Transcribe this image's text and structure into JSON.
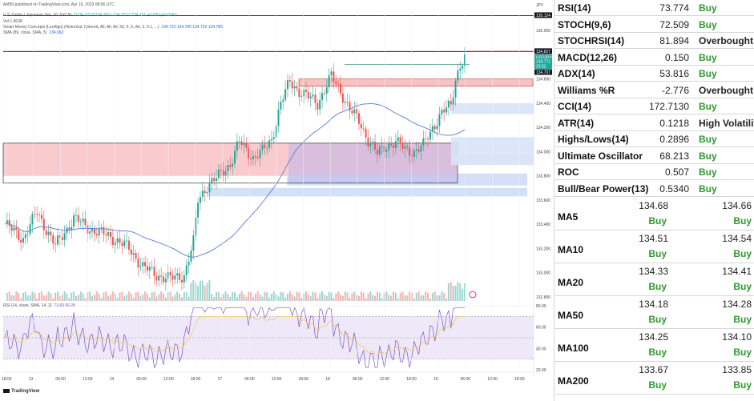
{
  "chart": {
    "publish_line": "Arif99 published on TradingView.com, Apr 19, 2023 08:06 UTC",
    "symbol_line": "U.S. Dollar / Japanese Yen, 30, FXCM",
    "ohlc": "O134.722 H134.780 L134.722 C134.771 +0.039 (+0.03%)",
    "volume_line": "Vol 1.963K",
    "smc_line": "Smart Money Concepts [LuxAlgo] (Historical, Colored, All, All, All, 50, 5, 5, Atr, 3, 0.1, ...)",
    "smc_values": "134.722 134.780 134.722 134.780",
    "sma_line": "SMA (89, close, SMA, 5)",
    "sma_value": "134.062",
    "rsi_line": "RSI (14, close, SMA, 14, 2)",
    "rsi_values": "73.69  66.28",
    "currency": "JPY",
    "price_badges": {
      "top_line": "135.124",
      "current": "134.827",
      "label": "USDJPY",
      "last": "134.771",
      "countdown": "23:52",
      "below": "134.707"
    },
    "footer": "TradingView"
  },
  "chart_data": {
    "type": "candlestick",
    "title": "U.S. Dollar / Japanese Yen, 30, FXCM",
    "y_ticks": [
      "135.000",
      "134.800",
      "134.600",
      "134.400",
      "134.200",
      "134.000",
      "133.800",
      "133.600",
      "133.400",
      "133.200",
      "133.000",
      "132.800"
    ],
    "ylim": [
      132.76,
      135.16
    ],
    "x_ticks": [
      "18:00",
      "13",
      "06:00",
      "12:00",
      "14",
      "06:00",
      "12:00",
      "18:00",
      "17",
      "06:00",
      "12:00",
      "18:00",
      "18",
      "06:00",
      "12:00",
      "18:00",
      "19",
      "06:00",
      "12:00",
      "18:00"
    ],
    "horizontal_lines": [
      135.124,
      134.827
    ],
    "last_price": 134.771,
    "sma_89_last": 134.062,
    "rsi": {
      "last": 73.69,
      "signal": 66.28,
      "ylim": [
        20,
        80
      ],
      "ticks": [
        "80.00",
        "60.00",
        "40.00",
        "20.00"
      ],
      "bands": [
        70,
        30
      ]
    }
  },
  "indicators": [
    {
      "name": "RSI(14)",
      "value": "73.774",
      "action": "Buy"
    },
    {
      "name": "STOCH(9,6)",
      "value": "72.509",
      "action": "Buy"
    },
    {
      "name": "STOCHRSI(14)",
      "value": "81.894",
      "action": "Overbought"
    },
    {
      "name": "MACD(12,26)",
      "value": "0.150",
      "action": "Buy"
    },
    {
      "name": "ADX(14)",
      "value": "53.816",
      "action": "Buy"
    },
    {
      "name": "Williams %R",
      "value": "-2.776",
      "action": "Overbought"
    },
    {
      "name": "CCI(14)",
      "value": "172.7130",
      "action": "Buy"
    },
    {
      "name": "ATR(14)",
      "value": "0.1218",
      "action": "High Volatility"
    },
    {
      "name": "Highs/Lows(14)",
      "value": "0.2896",
      "action": "Buy"
    },
    {
      "name": "Ultimate Oscillator",
      "value": "68.213",
      "action": "Buy"
    },
    {
      "name": "ROC",
      "value": "0.507",
      "action": "Buy"
    },
    {
      "name": "Bull/Bear Power(13)",
      "value": "0.5340",
      "action": "Buy"
    }
  ],
  "moving_averages": [
    {
      "name": "MA5",
      "simple": "134.68",
      "simple_action": "Buy",
      "exponential": "134.66",
      "exponential_action": "Buy"
    },
    {
      "name": "MA10",
      "simple": "134.51",
      "simple_action": "Buy",
      "exponential": "134.54",
      "exponential_action": "Buy"
    },
    {
      "name": "MA20",
      "simple": "134.33",
      "simple_action": "Buy",
      "exponential": "134.41",
      "exponential_action": "Buy"
    },
    {
      "name": "MA50",
      "simple": "134.18",
      "simple_action": "Buy",
      "exponential": "134.28",
      "exponential_action": "Buy"
    },
    {
      "name": "MA100",
      "simple": "134.25",
      "simple_action": "Buy",
      "exponential": "134.10",
      "exponential_action": "Buy"
    },
    {
      "name": "MA200",
      "simple": "133.67",
      "simple_action": "Buy",
      "exponential": "133.85",
      "exponential_action": "Buy"
    }
  ]
}
